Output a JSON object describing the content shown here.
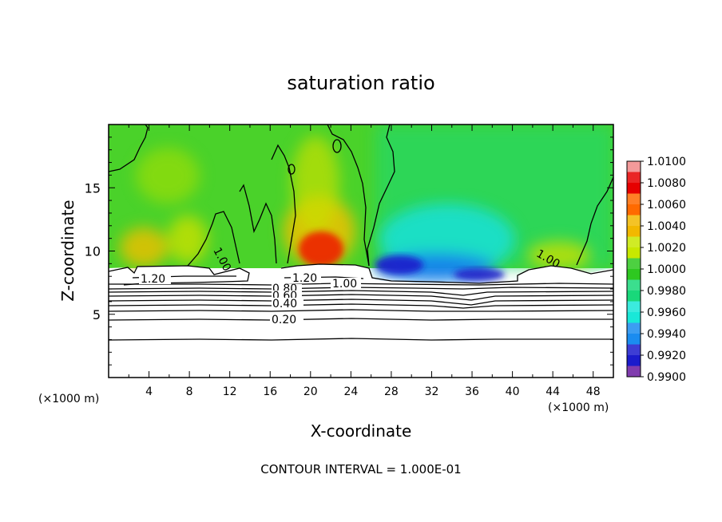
{
  "chart_data": {
    "type": "heatmap",
    "title": "saturation ratio",
    "xlabel": "X-coordinate",
    "ylabel": "Z-coordinate",
    "x_unit_left": "(×1000 m)",
    "x_unit_right": "(×1000 m)",
    "xlim": [
      0,
      50
    ],
    "ylim": [
      0,
      20
    ],
    "x_ticks": [
      "4",
      "8",
      "12",
      "16",
      "20",
      "24",
      "28",
      "32",
      "36",
      "40",
      "44",
      "48"
    ],
    "y_ticks": [
      "5",
      "10",
      "15"
    ],
    "footer": "CONTOUR INTERVAL = 1.000E-01",
    "colorbar": {
      "labels": [
        "1.0100",
        "1.0080",
        "1.0060",
        "1.0040",
        "1.0020",
        "1.0000",
        "0.9980",
        "0.9960",
        "0.9940",
        "0.9920",
        "0.9900"
      ],
      "colors": [
        "#f39a9a",
        "#e60000",
        "#ff6a00",
        "#f2b800",
        "#c8e800",
        "#2ec820",
        "#19d87a",
        "#19e8d8",
        "#1a8cf0",
        "#1b1bcc",
        "#6a1aa0"
      ]
    },
    "contour_labels": [
      "1.20",
      "1.20",
      "1.00",
      "1.00",
      "1.00",
      "0.80",
      "0.60",
      "0.40",
      "0.20"
    ],
    "field_description_values": {
      "upper_background": 1.001,
      "peak_high_near_x": 21,
      "peak_high_value": 1.008,
      "low_region_x_range": [
        26,
        40
      ],
      "low_region_min": 0.992,
      "cloud_base_height": 8.5
    }
  }
}
